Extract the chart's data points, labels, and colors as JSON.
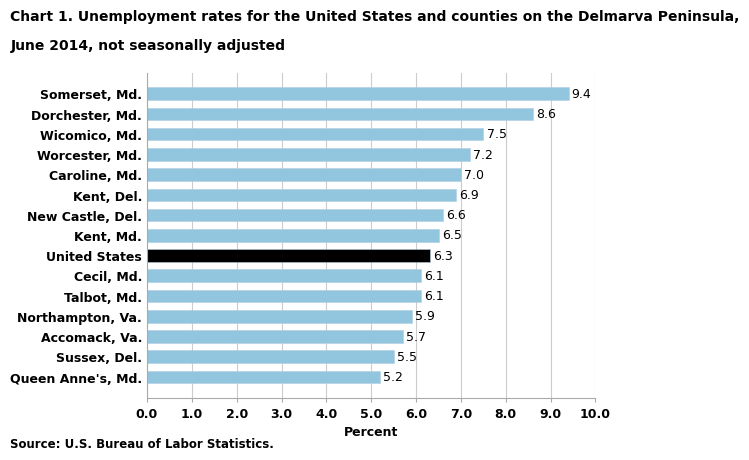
{
  "title_line1": "Chart 1. Unemployment rates for the United States and counties on the Delmarva Peninsula,",
  "title_line2": "June 2014, not seasonally adjusted",
  "categories": [
    "Queen Anne's, Md.",
    "Sussex, Del.",
    "Accomack, Va.",
    "Northampton, Va.",
    "Talbot, Md.",
    "Cecil, Md.",
    "United States",
    "Kent, Md.",
    "New Castle, Del.",
    "Kent, Del.",
    "Caroline, Md.",
    "Worcester, Md.",
    "Wicomico, Md.",
    "Dorchester, Md.",
    "Somerset, Md."
  ],
  "values": [
    5.2,
    5.5,
    5.7,
    5.9,
    6.1,
    6.1,
    6.3,
    6.5,
    6.6,
    6.9,
    7.0,
    7.2,
    7.5,
    8.6,
    9.4
  ],
  "bar_colors": [
    "#92c5de",
    "#92c5de",
    "#92c5de",
    "#92c5de",
    "#92c5de",
    "#92c5de",
    "#000000",
    "#92c5de",
    "#92c5de",
    "#92c5de",
    "#92c5de",
    "#92c5de",
    "#92c5de",
    "#92c5de",
    "#92c5de"
  ],
  "xlabel": "Percent",
  "xlim": [
    0.0,
    10.0
  ],
  "xticks": [
    0.0,
    1.0,
    2.0,
    3.0,
    4.0,
    5.0,
    6.0,
    7.0,
    8.0,
    9.0,
    10.0
  ],
  "source": "Source: U.S. Bureau of Labor Statistics.",
  "grid_color": "#cccccc",
  "value_label_fontsize": 9,
  "axis_label_fontsize": 9,
  "tick_label_fontsize": 9,
  "title_fontsize": 10,
  "bar_height": 0.62
}
